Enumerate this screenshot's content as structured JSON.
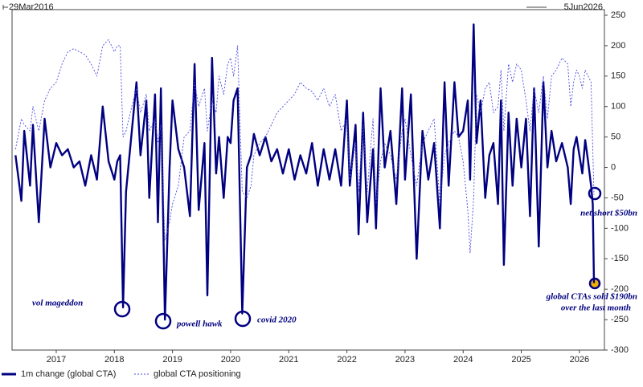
{
  "chart_data": {
    "type": "line",
    "start_label": "29Mar2016",
    "end_label": "5Jun2026",
    "x": [
      2016.3,
      2016.4,
      2016.45,
      2016.55,
      2016.6,
      2016.7,
      2016.8,
      2016.9,
      2017.0,
      2017.1,
      2017.2,
      2017.3,
      2017.4,
      2017.5,
      2017.6,
      2017.7,
      2017.8,
      2017.9,
      2018.0,
      2018.05,
      2018.1,
      2018.15,
      2018.2,
      2018.3,
      2018.38,
      2018.45,
      2018.55,
      2018.6,
      2018.7,
      2018.75,
      2018.8,
      2018.87,
      2018.95,
      2019.0,
      2019.1,
      2019.2,
      2019.3,
      2019.38,
      2019.45,
      2019.55,
      2019.6,
      2019.68,
      2019.75,
      2019.8,
      2019.88,
      2019.95,
      2020.0,
      2020.05,
      2020.12,
      2020.2,
      2020.28,
      2020.35,
      2020.4,
      2020.5,
      2020.6,
      2020.7,
      2020.8,
      2020.9,
      2021.0,
      2021.1,
      2021.2,
      2021.3,
      2021.4,
      2021.5,
      2021.6,
      2021.7,
      2021.8,
      2021.9,
      2022.0,
      2022.05,
      2022.15,
      2022.2,
      2022.28,
      2022.35,
      2022.45,
      2022.5,
      2022.58,
      2022.65,
      2022.75,
      2022.85,
      2022.95,
      2023.0,
      2023.1,
      2023.2,
      2023.3,
      2023.4,
      2023.5,
      2023.6,
      2023.68,
      2023.75,
      2023.85,
      2023.92,
      2024.0,
      2024.08,
      2024.12,
      2024.18,
      2024.23,
      2024.3,
      2024.38,
      2024.45,
      2024.52,
      2024.6,
      2024.65,
      2024.7,
      2024.78,
      2024.85,
      2024.92,
      2025.0,
      2025.08,
      2025.15,
      2025.22,
      2025.3,
      2025.38,
      2025.45,
      2025.52,
      2025.6,
      2025.7,
      2025.8,
      2025.85,
      2025.9,
      2025.95,
      2026.0,
      2026.05,
      2026.1,
      2026.15,
      2026.2,
      2026.23,
      2026.25
    ],
    "series": [
      {
        "name": "1m change (global CTA)",
        "color": "#000080",
        "style": "solid",
        "values": [
          20,
          -55,
          60,
          -30,
          70,
          -90,
          80,
          0,
          40,
          20,
          30,
          0,
          10,
          -30,
          20,
          -20,
          100,
          10,
          -20,
          10,
          20,
          -230,
          -40,
          60,
          140,
          20,
          110,
          -50,
          120,
          -90,
          130,
          -250,
          0,
          110,
          30,
          0,
          -80,
          170,
          -70,
          40,
          -210,
          180,
          -10,
          50,
          -50,
          50,
          40,
          110,
          130,
          -240,
          0,
          20,
          55,
          20,
          50,
          10,
          30,
          -10,
          30,
          -20,
          20,
          -10,
          40,
          -30,
          30,
          -20,
          30,
          -30,
          110,
          -30,
          70,
          -110,
          90,
          -90,
          30,
          -100,
          130,
          0,
          60,
          -60,
          130,
          -20,
          120,
          -150,
          60,
          -20,
          40,
          -100,
          140,
          -30,
          140,
          50,
          60,
          110,
          -20,
          235,
          40,
          110,
          -50,
          20,
          40,
          -60,
          110,
          -160,
          90,
          -30,
          80,
          0,
          80,
          -80,
          130,
          -130,
          140,
          0,
          60,
          10,
          40,
          0,
          -60,
          30,
          50,
          20,
          -10,
          45,
          10,
          -30,
          -60,
          -190
        ]
      },
      {
        "name": "global CTA positioning",
        "color": "#4a4ae0",
        "style": "dashed",
        "values": [
          30,
          80,
          70,
          60,
          100,
          60,
          110,
          130,
          140,
          170,
          190,
          195,
          190,
          185,
          170,
          150,
          200,
          210,
          190,
          200,
          200,
          50,
          60,
          100,
          130,
          90,
          120,
          60,
          80,
          40,
          70,
          -120,
          -90,
          -60,
          -30,
          50,
          60,
          140,
          100,
          130,
          60,
          110,
          90,
          150,
          120,
          170,
          180,
          150,
          200,
          -40,
          -50,
          -30,
          20,
          40,
          50,
          70,
          90,
          100,
          110,
          120,
          140,
          130,
          125,
          110,
          130,
          100,
          120,
          60,
          80,
          -20,
          40,
          -40,
          70,
          -40,
          80,
          -60,
          10,
          40,
          20,
          -20,
          60,
          80,
          20,
          -30,
          40,
          60,
          80,
          -60,
          20,
          40,
          60,
          50,
          10,
          -70,
          -140,
          -50,
          120,
          90,
          130,
          140,
          90,
          100,
          160,
          60,
          170,
          140,
          170,
          160,
          110,
          60,
          130,
          90,
          150,
          80,
          150,
          160,
          180,
          170,
          100,
          140,
          160,
          150,
          130,
          160,
          150,
          140,
          30,
          -45
        ]
      }
    ],
    "xlim": [
      2016.24,
      2026.43
    ],
    "xticks": [
      2017,
      2018,
      2019,
      2020,
      2021,
      2022,
      2023,
      2024,
      2025,
      2026
    ],
    "ylim": [
      -300,
      250
    ],
    "yticks": [
      -300,
      -250,
      -200,
      -150,
      -100,
      -50,
      0,
      50,
      100,
      150,
      200,
      250
    ],
    "y_axis_side": "right",
    "legend": "bottom-left",
    "annotations": [
      "vol mageddon",
      "powell hawk",
      "covid 2020",
      "net short $50bn",
      "global CTAs sold $190bn",
      "over the last month"
    ]
  }
}
